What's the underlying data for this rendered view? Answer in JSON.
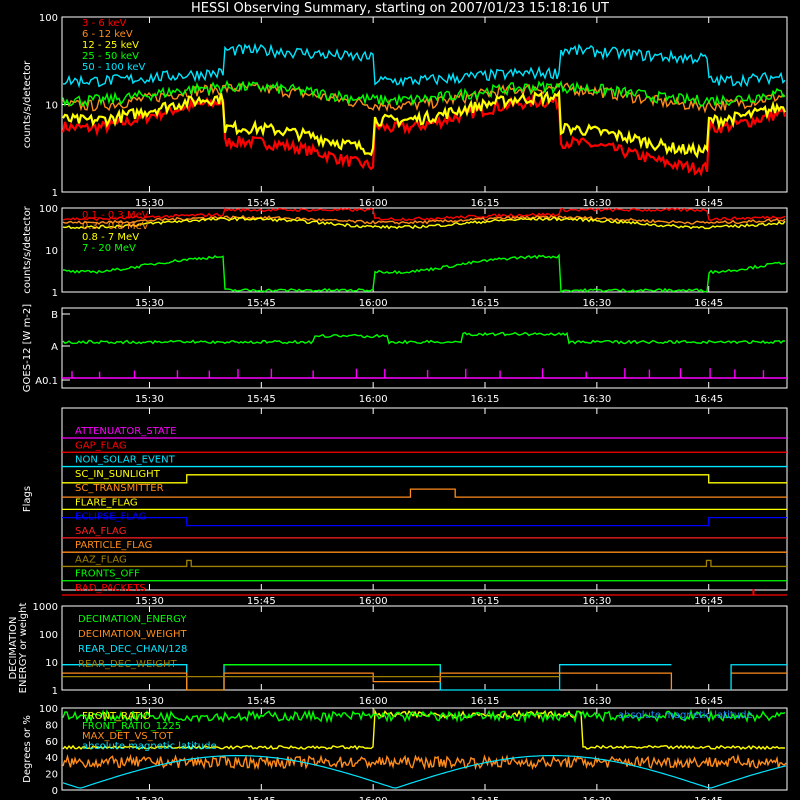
{
  "title": "HESSI Observing Summary, starting on 2007/01/23 15:18:16 UT",
  "time_labels": [
    "15:30",
    "15:45",
    "16:00",
    "16:15",
    "16:30",
    "16:45"
  ],
  "chart_data": [
    {
      "type": "line",
      "ylabel": "counts/s/detector",
      "yscale": "log",
      "ylim": [
        1,
        100
      ],
      "ytick_labels": [
        "1",
        "10",
        "100"
      ],
      "legend_placement": "top-left",
      "series": [
        {
          "name": "3 - 6 keV",
          "color": "#ff0000"
        },
        {
          "name": "6 - 12 keV",
          "color": "#ff8c1a"
        },
        {
          "name": "12 - 25 keV",
          "color": "#ffff00"
        },
        {
          "name": "25 - 50 keV",
          "color": "#00ff00"
        },
        {
          "name": "50 - 100 keV",
          "color": "#00e5ff"
        }
      ]
    },
    {
      "type": "line",
      "ylabel": "counts/s/detector",
      "yscale": "log",
      "ylim": [
        1,
        100
      ],
      "ytick_labels": [
        "1",
        "10",
        "100"
      ],
      "legend_placement": "top-left",
      "series": [
        {
          "name": "0.1 - 0.3 MeV",
          "color": "#ff0000"
        },
        {
          "name": "0.3 - 0.8 MeV",
          "color": "#ff8c1a"
        },
        {
          "name": "0.8 - 7 MeV",
          "color": "#ffff00"
        },
        {
          "name": "7 - 20 MeV",
          "color": "#00ff00"
        }
      ]
    },
    {
      "type": "line",
      "ylabel": "GOES-12 [W m-2]",
      "ytick_labels": [
        "B",
        "A",
        "A0.1"
      ],
      "series": [
        {
          "color": "#00ff00"
        },
        {
          "color": "#ff00ff"
        }
      ]
    },
    {
      "type": "line",
      "ylabel": "Flags",
      "flags": [
        {
          "label": "ATTENUATOR_STATE",
          "color": "#ff00ff"
        },
        {
          "label": "GAP_FLAG",
          "color": "#ff0000"
        },
        {
          "label": "NON_SOLAR_EVENT",
          "color": "#00e5ff"
        },
        {
          "label": "SC_IN_SUNLIGHT",
          "color": "#ffff00"
        },
        {
          "label": "SC_TRANSMITTER",
          "color": "#ff8c1a"
        },
        {
          "label": "FLARE_FLAG",
          "color": "#ffff00"
        },
        {
          "label": "ECLIPSE_FLAG",
          "color": "#0000ff"
        },
        {
          "label": "SAA_FLAG",
          "color": "#ff2020"
        },
        {
          "label": "PARTICLE_FLAG",
          "color": "#ff8c1a"
        },
        {
          "label": "AAZ_FLAG",
          "color": "#a08000"
        },
        {
          "label": "FRONTS_OFF",
          "color": "#00ff00"
        },
        {
          "label": "BAD_PACKETS",
          "color": "#ff0000"
        }
      ]
    },
    {
      "type": "line",
      "ylabel": "DECIMATION ENERGY or weight",
      "yscale": "log",
      "ylim": [
        1,
        1000
      ],
      "ytick_labels": [
        "1",
        "10",
        "100",
        "1000"
      ],
      "legend_placement": "top-left",
      "series": [
        {
          "name": "DECIMATION_ENERGY",
          "color": "#00ff00"
        },
        {
          "name": "DECIMATION_WEIGHT",
          "color": "#ff8c1a"
        },
        {
          "name": "REAR_DEC_CHAN/128",
          "color": "#00e5ff"
        },
        {
          "name": "REAR_DEC_WEIGHT",
          "color": "#a08000"
        }
      ]
    },
    {
      "type": "line",
      "ylabel": "Degrees or %",
      "ylim": [
        0,
        100
      ],
      "ytick_labels": [
        "0",
        "20",
        "40",
        "60",
        "80",
        "100"
      ],
      "legend_placement": "top-left",
      "annotation": "absolute magnetic latitude",
      "series": [
        {
          "name": "FRONT_RATIO",
          "color": "#ffff00"
        },
        {
          "name": "FRONT_RATIO_1225",
          "color": "#00ff00"
        },
        {
          "name": "MAX_DET_VS_TOT",
          "color": "#ff8c1a"
        },
        {
          "name": "absolute magnetic latitude",
          "color": "#00e5ff"
        }
      ]
    }
  ]
}
